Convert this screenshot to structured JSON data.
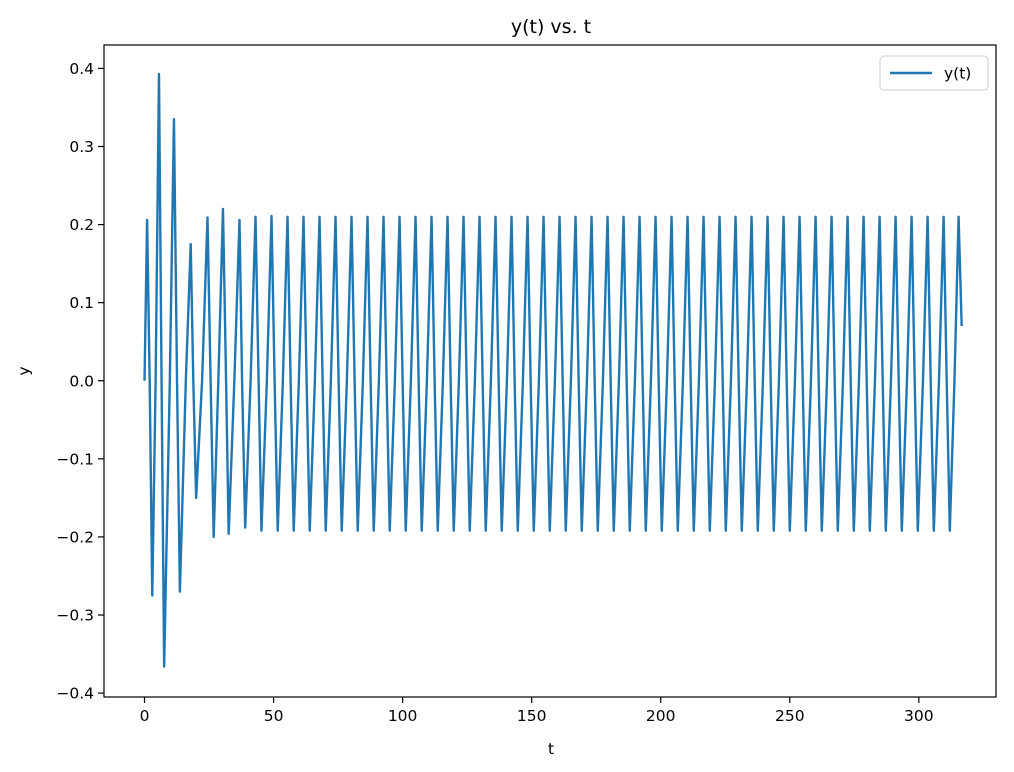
{
  "chart_data": {
    "type": "line",
    "title": "y(t) vs. t",
    "xlabel": "t",
    "ylabel": "y",
    "xlim": [
      -15.7,
      329.9
    ],
    "ylim": [
      -0.405,
      0.43
    ],
    "xticks": [
      0,
      50,
      100,
      150,
      200,
      250,
      300
    ],
    "xtick_labels": [
      "0",
      "50",
      "100",
      "150",
      "200",
      "250",
      "300"
    ],
    "yticks": [
      -0.4,
      -0.3,
      -0.2,
      -0.1,
      0.0,
      0.1,
      0.2,
      0.3,
      0.4
    ],
    "ytick_labels": [
      "−0.4",
      "−0.3",
      "−0.2",
      "−0.1",
      "0.0",
      "0.1",
      "0.2",
      "0.3",
      "0.4"
    ],
    "grid": false,
    "legend": {
      "position": "top-right",
      "entries": [
        "y(t)"
      ]
    },
    "series": [
      {
        "name": "y(t)",
        "color": "#1f77b4",
        "points": [
          [
            0.0,
            0.0
          ],
          [
            1.0,
            0.206
          ],
          [
            2.0,
            0.0
          ],
          [
            3.0,
            -0.275
          ],
          [
            4.3,
            0.0
          ],
          [
            5.6,
            0.393
          ],
          [
            6.6,
            0.0
          ],
          [
            7.6,
            -0.366
          ],
          [
            9.8,
            0.0
          ],
          [
            11.4,
            0.335
          ],
          [
            12.6,
            0.0
          ],
          [
            13.7,
            -0.27
          ],
          [
            16.0,
            0.0
          ],
          [
            17.9,
            0.175
          ],
          [
            18.9,
            0.0
          ],
          [
            20.0,
            -0.15
          ],
          [
            22.3,
            0.0
          ],
          [
            24.4,
            0.209
          ],
          [
            25.6,
            0.0
          ],
          [
            26.8,
            -0.2
          ],
          [
            28.6,
            0.0
          ],
          [
            30.4,
            0.22
          ],
          [
            31.6,
            0.0
          ],
          [
            32.6,
            -0.196
          ],
          [
            34.8,
            0.0
          ],
          [
            36.8,
            0.206
          ],
          [
            37.8,
            0.0
          ],
          [
            39.0,
            -0.188
          ],
          [
            41.1,
            0.0
          ],
          [
            43.0,
            0.21
          ],
          [
            44.2,
            0.0
          ],
          [
            45.3,
            -0.192
          ],
          [
            47.4,
            0.0
          ],
          [
            49.2,
            0.211
          ],
          [
            50.4,
            0.0
          ],
          [
            51.6,
            -0.192
          ],
          [
            53.6,
            0.0
          ],
          [
            55.4,
            0.21
          ],
          [
            56.6,
            0.0
          ],
          [
            57.8,
            -0.192
          ],
          [
            59.8,
            0.0
          ],
          [
            61.6,
            0.21
          ],
          [
            62.8,
            0.0
          ],
          [
            64.0,
            -0.192
          ],
          [
            66.0,
            0.0
          ],
          [
            67.8,
            0.21
          ],
          [
            69.0,
            0.0
          ],
          [
            70.2,
            -0.192
          ],
          [
            72.2,
            0.0
          ],
          [
            74.0,
            0.21
          ],
          [
            75.2,
            0.0
          ],
          [
            76.4,
            -0.192
          ],
          [
            78.4,
            0.0
          ],
          [
            80.2,
            0.21
          ],
          [
            81.4,
            0.0
          ],
          [
            82.6,
            -0.192
          ],
          [
            84.6,
            0.0
          ],
          [
            86.4,
            0.21
          ],
          [
            87.6,
            0.0
          ],
          [
            88.8,
            -0.192
          ],
          [
            90.8,
            0.0
          ],
          [
            92.6,
            0.21
          ],
          [
            93.8,
            0.0
          ],
          [
            95.0,
            -0.192
          ],
          [
            97.0,
            0.0
          ],
          [
            98.8,
            0.21
          ],
          [
            100.0,
            0.0
          ],
          [
            101.2,
            -0.192
          ],
          [
            103.2,
            0.0
          ],
          [
            105.0,
            0.21
          ],
          [
            106.2,
            0.0
          ],
          [
            107.4,
            -0.192
          ],
          [
            109.4,
            0.0
          ],
          [
            111.2,
            0.21
          ],
          [
            112.4,
            0.0
          ],
          [
            113.6,
            -0.192
          ],
          [
            115.6,
            0.0
          ],
          [
            117.4,
            0.21
          ],
          [
            118.6,
            0.0
          ],
          [
            119.8,
            -0.192
          ],
          [
            121.8,
            0.0
          ],
          [
            123.6,
            0.21
          ],
          [
            124.8,
            0.0
          ],
          [
            126.0,
            -0.192
          ],
          [
            128.0,
            0.0
          ],
          [
            129.8,
            0.21
          ],
          [
            131.0,
            0.0
          ],
          [
            132.2,
            -0.192
          ],
          [
            134.2,
            0.0
          ],
          [
            136.0,
            0.21
          ],
          [
            137.2,
            0.0
          ],
          [
            138.4,
            -0.192
          ],
          [
            140.4,
            0.0
          ],
          [
            142.2,
            0.21
          ],
          [
            143.4,
            0.0
          ],
          [
            144.6,
            -0.192
          ],
          [
            146.6,
            0.0
          ],
          [
            148.4,
            0.21
          ],
          [
            149.6,
            0.0
          ],
          [
            150.8,
            -0.192
          ],
          [
            152.8,
            0.0
          ],
          [
            154.6,
            0.21
          ],
          [
            155.8,
            0.0
          ],
          [
            157.0,
            -0.192
          ],
          [
            159.0,
            0.0
          ],
          [
            160.8,
            0.21
          ],
          [
            162.0,
            0.0
          ],
          [
            163.2,
            -0.192
          ],
          [
            165.2,
            0.0
          ],
          [
            167.0,
            0.21
          ],
          [
            168.2,
            0.0
          ],
          [
            169.4,
            -0.192
          ],
          [
            171.4,
            0.0
          ],
          [
            173.2,
            0.21
          ],
          [
            174.4,
            0.0
          ],
          [
            175.6,
            -0.192
          ],
          [
            177.6,
            0.0
          ],
          [
            179.4,
            0.21
          ],
          [
            180.6,
            0.0
          ],
          [
            181.8,
            -0.192
          ],
          [
            183.8,
            0.0
          ],
          [
            185.6,
            0.21
          ],
          [
            186.8,
            0.0
          ],
          [
            188.0,
            -0.192
          ],
          [
            190.0,
            0.0
          ],
          [
            191.8,
            0.21
          ],
          [
            193.0,
            0.0
          ],
          [
            194.2,
            -0.192
          ],
          [
            196.2,
            0.0
          ],
          [
            198.0,
            0.21
          ],
          [
            199.2,
            0.0
          ],
          [
            200.4,
            -0.192
          ],
          [
            202.4,
            0.0
          ],
          [
            204.2,
            0.21
          ],
          [
            205.4,
            0.0
          ],
          [
            206.6,
            -0.192
          ],
          [
            208.6,
            0.0
          ],
          [
            210.4,
            0.21
          ],
          [
            211.6,
            0.0
          ],
          [
            212.8,
            -0.192
          ],
          [
            214.8,
            0.0
          ],
          [
            216.6,
            0.21
          ],
          [
            217.8,
            0.0
          ],
          [
            219.0,
            -0.192
          ],
          [
            221.0,
            0.0
          ],
          [
            222.8,
            0.21
          ],
          [
            224.0,
            0.0
          ],
          [
            225.2,
            -0.192
          ],
          [
            227.2,
            0.0
          ],
          [
            229.0,
            0.21
          ],
          [
            230.2,
            0.0
          ],
          [
            231.4,
            -0.192
          ],
          [
            233.4,
            0.0
          ],
          [
            235.2,
            0.21
          ],
          [
            236.4,
            0.0
          ],
          [
            237.6,
            -0.192
          ],
          [
            239.6,
            0.0
          ],
          [
            241.4,
            0.21
          ],
          [
            242.6,
            0.0
          ],
          [
            243.8,
            -0.192
          ],
          [
            245.8,
            0.0
          ],
          [
            247.6,
            0.21
          ],
          [
            248.8,
            0.0
          ],
          [
            250.0,
            -0.192
          ],
          [
            252.0,
            0.0
          ],
          [
            253.8,
            0.21
          ],
          [
            255.0,
            0.0
          ],
          [
            256.2,
            -0.192
          ],
          [
            258.2,
            0.0
          ],
          [
            260.0,
            0.21
          ],
          [
            261.2,
            0.0
          ],
          [
            262.4,
            -0.192
          ],
          [
            264.4,
            0.0
          ],
          [
            266.2,
            0.21
          ],
          [
            267.4,
            0.0
          ],
          [
            268.6,
            -0.192
          ],
          [
            270.6,
            0.0
          ],
          [
            272.4,
            0.21
          ],
          [
            273.6,
            0.0
          ],
          [
            274.8,
            -0.192
          ],
          [
            276.8,
            0.0
          ],
          [
            278.6,
            0.21
          ],
          [
            279.8,
            0.0
          ],
          [
            281.0,
            -0.192
          ],
          [
            283.0,
            0.0
          ],
          [
            284.8,
            0.21
          ],
          [
            286.0,
            0.0
          ],
          [
            287.2,
            -0.192
          ],
          [
            289.2,
            0.0
          ],
          [
            291.0,
            0.21
          ],
          [
            292.2,
            0.0
          ],
          [
            293.4,
            -0.192
          ],
          [
            295.4,
            0.0
          ],
          [
            297.2,
            0.21
          ],
          [
            298.4,
            0.0
          ],
          [
            299.6,
            -0.192
          ],
          [
            301.6,
            0.0
          ],
          [
            303.4,
            0.21
          ],
          [
            304.6,
            0.0
          ],
          [
            305.8,
            -0.192
          ],
          [
            307.8,
            0.0
          ],
          [
            309.6,
            0.21
          ],
          [
            310.8,
            0.0
          ],
          [
            312.0,
            -0.192
          ],
          [
            313.8,
            0.0
          ],
          [
            315.4,
            0.21
          ],
          [
            316.6,
            0.07
          ]
        ]
      }
    ]
  }
}
